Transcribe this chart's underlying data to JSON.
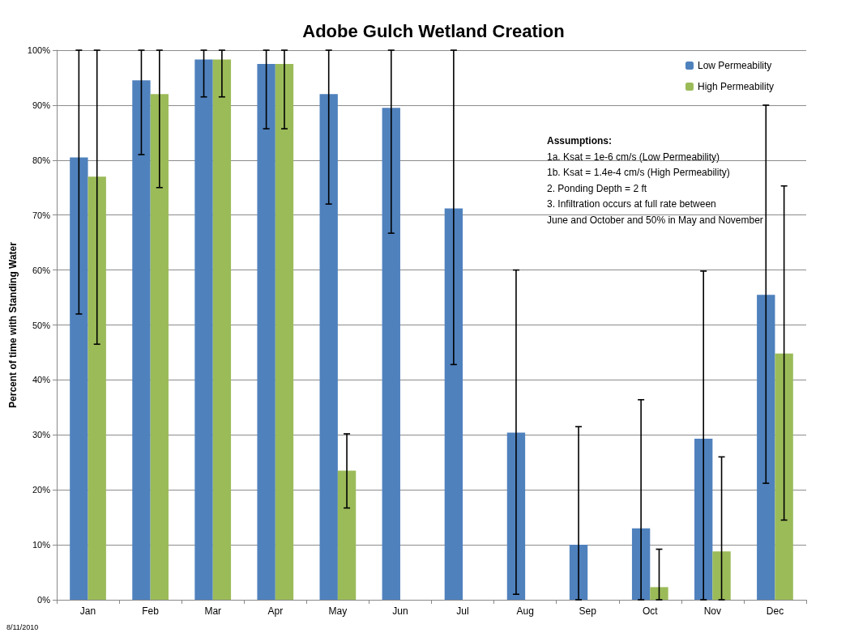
{
  "chart_data": {
    "type": "bar",
    "title": "Adobe Gulch Wetland Creation",
    "ylabel": "Percent of time with Standing Water",
    "categories": [
      "Jan",
      "Feb",
      "Mar",
      "Apr",
      "May",
      "Jun",
      "Jul",
      "Aug",
      "Sep",
      "Oct",
      "Nov",
      "Dec"
    ],
    "series": [
      {
        "name": "Low Permeability",
        "color": "#4f81bd",
        "values": [
          80.5,
          94.5,
          98.3,
          97.5,
          92,
          89.5,
          71.2,
          30.4,
          10,
          13,
          29.3,
          55.5
        ],
        "errors": [
          [
            52,
            100
          ],
          [
            81,
            100
          ],
          [
            91.5,
            100
          ],
          [
            85.7,
            100
          ],
          [
            72,
            100
          ],
          [
            66.7,
            100
          ],
          [
            42.8,
            100
          ],
          [
            1,
            60
          ],
          [
            0,
            31.5
          ],
          [
            0,
            36.4
          ],
          [
            0,
            59.8
          ],
          [
            21.2,
            90
          ]
        ]
      },
      {
        "name": "High Permeability",
        "color": "#9bbb59",
        "values": [
          77,
          92,
          98.3,
          97.5,
          23.5,
          0,
          0,
          0,
          0,
          2.3,
          8.8,
          44.8
        ],
        "errors": [
          [
            46.5,
            100
          ],
          [
            75,
            100
          ],
          [
            91.5,
            100
          ],
          [
            85.7,
            100
          ],
          [
            16.7,
            30.2
          ],
          null,
          null,
          null,
          null,
          [
            0,
            9.2
          ],
          [
            0,
            26
          ],
          [
            14.5,
            75.3
          ]
        ]
      }
    ],
    "ylim": [
      0,
      100
    ],
    "yticks": [
      {
        "value": 0,
        "label": "0%"
      },
      {
        "value": 10,
        "label": "10%"
      },
      {
        "value": 20,
        "label": "20%"
      },
      {
        "value": 30,
        "label": "30%"
      },
      {
        "value": 40,
        "label": "40%"
      },
      {
        "value": 50,
        "label": "50%"
      },
      {
        "value": 60,
        "label": "60%"
      },
      {
        "value": 70,
        "label": "70%"
      },
      {
        "value": 80,
        "label": "80%"
      },
      {
        "value": 90,
        "label": "90%"
      },
      {
        "value": 100,
        "label": "100%"
      }
    ],
    "grid": "y",
    "legend": "top right",
    "annotations": [
      "Assumptions:",
      "1a. Ksat = 1e-6 cm/s (Low Permeability)",
      "1b. Ksat = 1.4e-4 cm/s (High Permeability)",
      "2. Ponding Depth = 2 ft",
      "3. Infiltration occurs at full rate between",
      "June and October and 50% in May and November",
      "8/11/2010"
    ]
  }
}
